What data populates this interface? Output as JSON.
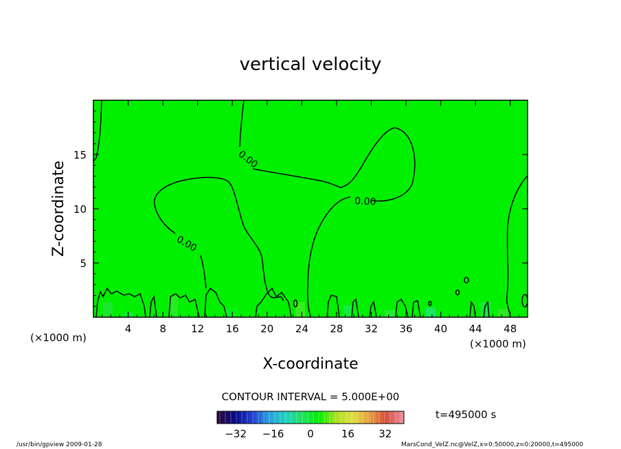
{
  "chart_data": {
    "type": "heatmap",
    "title": "vertical velocity",
    "xlabel": "X-coordinate",
    "ylabel": "Z-coordinate",
    "x_unit": "(×1000 m)",
    "xlim": [
      0,
      50
    ],
    "ylim": [
      0,
      20
    ],
    "x_ticks": [
      4,
      8,
      12,
      16,
      20,
      24,
      28,
      32,
      36,
      40,
      44,
      48
    ],
    "y_ticks": [
      5,
      10,
      15
    ],
    "field_background_color": "#00f000",
    "contour_interval_text": "CONTOUR INTERVAL = 5.000E+00",
    "contour_labels": [
      "0.00",
      "0.00",
      "0.00"
    ],
    "colorbar": {
      "ticks": [
        -32,
        -16,
        0,
        16,
        32
      ],
      "range": [
        -40,
        40
      ],
      "colors": [
        "#2a0a3a",
        "#0a0a8a",
        "#1f3fd0",
        "#2a9fe0",
        "#20d0c0",
        "#20e060",
        "#00f000",
        "#a8e020",
        "#e0e040",
        "#e8a040",
        "#d85040",
        "#e88898"
      ]
    },
    "time_label": "t=495000 s",
    "footer_left": "/usr/bin/gpview  2009-01-28",
    "footer_right": "MarsCond_VelZ.nc@VelZ,x=0:50000,z=0:20000,t=495000"
  }
}
